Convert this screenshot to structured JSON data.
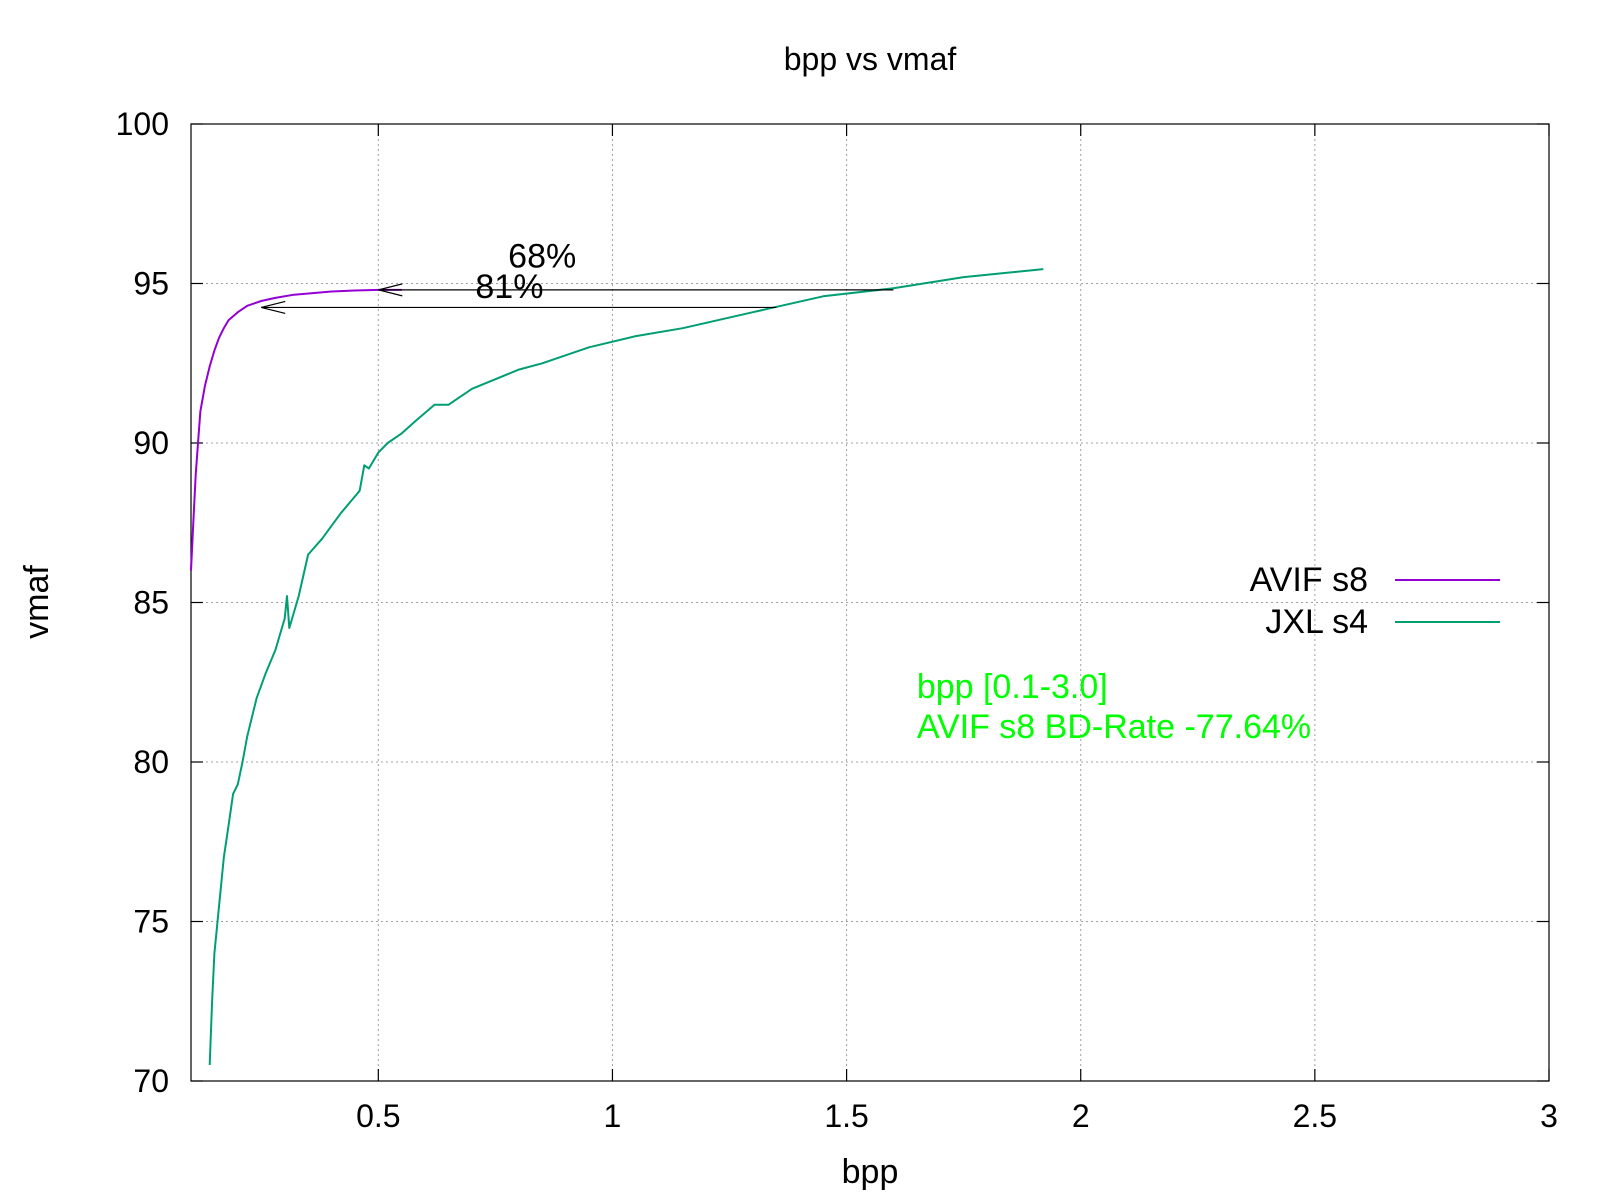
{
  "chart_data": {
    "type": "line",
    "title": "bpp vs vmaf",
    "xlabel": "bpp",
    "ylabel": "vmaf",
    "xlim": [
      0.1,
      3.0
    ],
    "ylim": [
      70,
      100
    ],
    "xticks": [
      0.5,
      1,
      1.5,
      2,
      2.5,
      3
    ],
    "xtick_labels": [
      "0.5",
      "1",
      "1.5",
      "2",
      "2.5",
      "3"
    ],
    "yticks": [
      70,
      75,
      80,
      85,
      90,
      95,
      100
    ],
    "ytick_labels": [
      "70",
      "75",
      "80",
      "85",
      "90",
      "95",
      "100"
    ],
    "grid": true,
    "legend_position": "right",
    "series": [
      {
        "name": "AVIF s8",
        "color": "#9400d3",
        "x": [
          0.1,
          0.105,
          0.11,
          0.115,
          0.12,
          0.13,
          0.14,
          0.15,
          0.16,
          0.17,
          0.18,
          0.2,
          0.22,
          0.25,
          0.28,
          0.32,
          0.36,
          0.4,
          0.45,
          0.5,
          0.55
        ],
        "y": [
          86.0,
          87.5,
          89.0,
          90.0,
          91.0,
          91.8,
          92.4,
          92.9,
          93.3,
          93.6,
          93.85,
          94.1,
          94.3,
          94.45,
          94.55,
          94.65,
          94.7,
          94.75,
          94.78,
          94.8,
          94.8
        ]
      },
      {
        "name": "JXL s4",
        "color": "#009e73",
        "x": [
          0.14,
          0.145,
          0.15,
          0.16,
          0.17,
          0.18,
          0.19,
          0.2,
          0.21,
          0.22,
          0.24,
          0.26,
          0.28,
          0.3,
          0.305,
          0.31,
          0.33,
          0.35,
          0.38,
          0.42,
          0.46,
          0.47,
          0.48,
          0.5,
          0.52,
          0.55,
          0.58,
          0.62,
          0.65,
          0.7,
          0.8,
          0.85,
          0.95,
          1.05,
          1.15,
          1.3,
          1.45,
          1.6,
          1.75,
          1.92
        ],
        "y": [
          70.5,
          72.5,
          74.0,
          75.5,
          77.0,
          78.0,
          79.0,
          79.3,
          80.0,
          80.8,
          82.0,
          82.8,
          83.5,
          84.5,
          85.2,
          84.2,
          85.2,
          86.5,
          87.0,
          87.8,
          88.5,
          89.3,
          89.2,
          89.7,
          90.0,
          90.3,
          90.7,
          91.2,
          91.2,
          91.7,
          92.3,
          92.5,
          93.0,
          93.35,
          93.6,
          94.1,
          94.6,
          94.85,
          95.2,
          95.45
        ]
      }
    ],
    "annotations": [
      {
        "text": "68%",
        "x": 0.85,
        "y": 95.5,
        "color": "#000000"
      },
      {
        "text": "81%",
        "x": 0.78,
        "y": 94.55,
        "color": "#000000"
      },
      {
        "text": "bpp [0.1-3.0]",
        "x": 1.65,
        "y": 82.0,
        "color": "#00ff00"
      },
      {
        "text": "AVIF s8 BD-Rate -77.64%",
        "x": 1.65,
        "y": 80.75,
        "color": "#00ff00"
      }
    ],
    "arrows": [
      {
        "from": [
          1.6,
          94.8
        ],
        "to": [
          0.5,
          94.8
        ]
      },
      {
        "from": [
          1.35,
          94.25
        ],
        "to": [
          0.25,
          94.25
        ]
      }
    ]
  }
}
